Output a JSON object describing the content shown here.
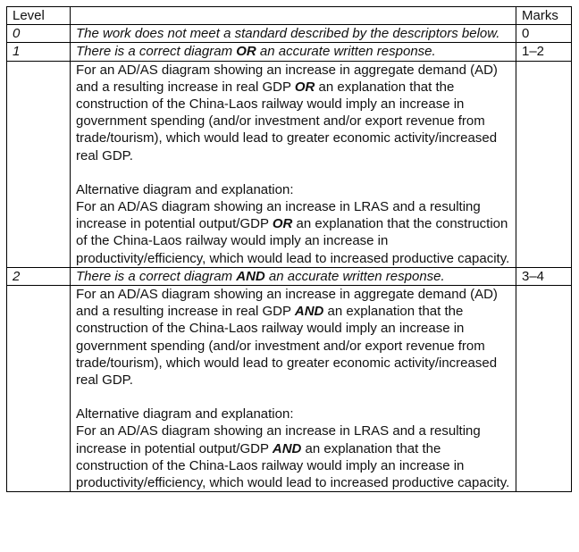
{
  "header": {
    "level": "Level",
    "descriptor": "",
    "marks": "Marks"
  },
  "rows": [
    {
      "level": "0",
      "descriptor": "The work does not meet a standard described by the descriptors below.",
      "marks": "0"
    },
    {
      "level": "1",
      "descriptor_pre": "There is a correct diagram ",
      "descriptor_key": "OR",
      "descriptor_post": " an accurate written response.",
      "marks": "1–2",
      "detail": {
        "p1_pre": "For an AD/AS diagram showing an increase in aggregate demand (AD) and a resulting increase in real GDP ",
        "p1_key": "OR",
        "p1_post": " an explanation that the construction of the China-Laos railway would imply an increase in government spending (and/or investment and/or export revenue from trade/tourism), which would lead to greater economic activity/increased real GDP.",
        "alt_heading": "Alternative diagram and explanation:",
        "p2_pre": "For an AD/AS diagram showing an increase in LRAS and a resulting increase in potential output/GDP ",
        "p2_key": "OR",
        "p2_post": " an explanation that the construction of the China-Laos railway would imply an increase in productivity/efficiency, which would lead to increased productive capacity."
      }
    },
    {
      "level": "2",
      "descriptor_pre": "There is a correct diagram ",
      "descriptor_key": "AND",
      "descriptor_post": " an accurate written response.",
      "marks": "3–4",
      "detail": {
        "p1_pre": "For an AD/AS diagram showing an increase in aggregate demand (AD) and a resulting increase in real GDP ",
        "p1_key": "AND",
        "p1_post": " an explanation that the construction of the China-Laos railway would imply an increase in government spending (and/or investment and/or export revenue from trade/tourism), which would lead to greater economic activity/increased real GDP.",
        "alt_heading": "Alternative diagram and explanation:",
        "p2_pre": "For an AD/AS diagram showing an increase in LRAS and a resulting increase in potential output/GDP ",
        "p2_key": "AND",
        "p2_post": " an explanation that the construction of the China-Laos railway would imply an increase in productivity/efficiency, which would lead to increased productive capacity."
      }
    }
  ]
}
